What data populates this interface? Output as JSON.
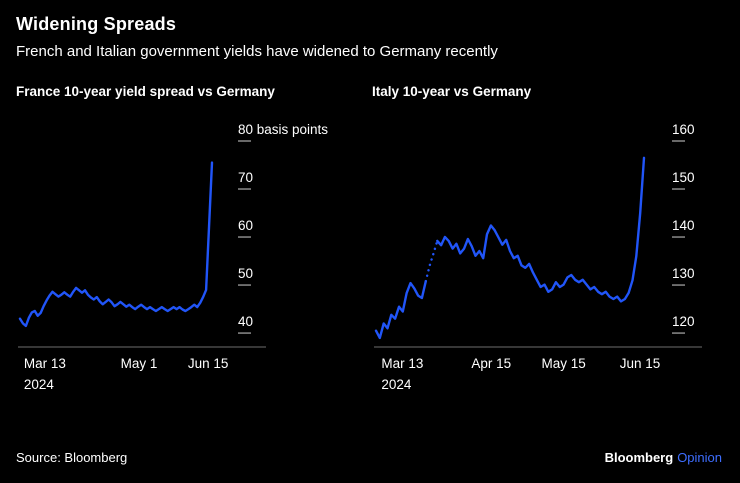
{
  "header": {
    "title": "Widening Spreads",
    "subtitle": "French and Italian government yields have widened to Germany recently"
  },
  "footer": {
    "source": "Source: Bloomberg",
    "brand": "Bloomberg",
    "brand_suffix": "Opinion"
  },
  "colors": {
    "background": "#000000",
    "line": "#2155F8",
    "axis": "#6E6E6E",
    "tick": "#8A8A8A",
    "text": "#FFFFFF",
    "brand_opinion": "#3E6EFF"
  },
  "chart_data": [
    {
      "type": "line",
      "title": "France 10-year yield spread vs Germany",
      "ylabel": "basis points",
      "ylim": [
        37.1,
        80
      ],
      "yticks": [
        40,
        50,
        60,
        70,
        80
      ],
      "ytick_labels": [
        "40",
        "50",
        "60",
        "70",
        "80 basis points"
      ],
      "xticks": [
        {
          "label": "Mar 13",
          "sub": "2024",
          "pos": 0.02,
          "anchor": "start"
        },
        {
          "label": "May 1",
          "pos": 0.62
        },
        {
          "label": "Jun 15",
          "pos": 0.98
        }
      ],
      "segments": [
        {
          "from": 0,
          "to": 65,
          "style": "solid"
        }
      ],
      "values": [
        43,
        42,
        41.5,
        43.2,
        44.3,
        44.6,
        43.6,
        44.2,
        45.6,
        46.8,
        47.8,
        48.6,
        48.1,
        47.6,
        48,
        48.5,
        48,
        47.6,
        48.6,
        49.4,
        48.9,
        48.4,
        48.9,
        48,
        47.4,
        47,
        47.5,
        46.6,
        46,
        46.5,
        47,
        46.4,
        45.6,
        46,
        46.5,
        46,
        45.5,
        45.9,
        45.4,
        45,
        45.5,
        45.9,
        45.4,
        45,
        45.4,
        45,
        44.6,
        45,
        45.4,
        45,
        44.6,
        45,
        45.4,
        45,
        45.4,
        44.9,
        44.6,
        45,
        45.4,
        45.9,
        45.4,
        46.3,
        47.5,
        49,
        62,
        75.5
      ]
    },
    {
      "type": "line",
      "title": "Italy 10-year vs Germany",
      "ylabel": "basis points",
      "ylim": [
        117.1,
        160
      ],
      "yticks": [
        120,
        130,
        140,
        150,
        160
      ],
      "ytick_labels": [
        "120",
        "130",
        "140",
        "150",
        "160"
      ],
      "xticks": [
        {
          "label": "Mar 13",
          "sub": "2024",
          "pos": 0.02,
          "anchor": "start"
        },
        {
          "label": "Apr 15",
          "pos": 0.43
        },
        {
          "label": "May 15",
          "pos": 0.7
        },
        {
          "label": "Jun 15",
          "pos": 0.985
        }
      ],
      "segments": [
        {
          "from": 0,
          "to": 13,
          "style": "solid"
        },
        {
          "from": 13,
          "to": 16,
          "style": "dashed"
        },
        {
          "from": 16,
          "to": 70,
          "style": "solid"
        }
      ],
      "values": [
        120.5,
        119,
        122,
        121,
        123.8,
        123,
        125.5,
        124.5,
        128.3,
        130.4,
        129.3,
        127.8,
        127.3,
        130.8,
        134,
        136.5,
        139.2,
        138.3,
        140,
        139.2,
        137.6,
        138.6,
        136.6,
        137.6,
        139.6,
        138.1,
        136.1,
        137.1,
        135.6,
        140.6,
        142.4,
        141.4,
        139.9,
        138.4,
        139.4,
        137.1,
        135.6,
        136.1,
        134.1,
        133.6,
        134.4,
        132.6,
        131.1,
        129.6,
        130.1,
        128.6,
        129.1,
        130.6,
        129.6,
        130.1,
        131.6,
        132.1,
        131.1,
        130.6,
        131.1,
        130.1,
        129.1,
        129.6,
        128.6,
        128.1,
        128.6,
        127.6,
        127.1,
        127.6,
        126.6,
        127.1,
        128.4,
        131,
        136,
        145,
        156.5
      ]
    }
  ]
}
